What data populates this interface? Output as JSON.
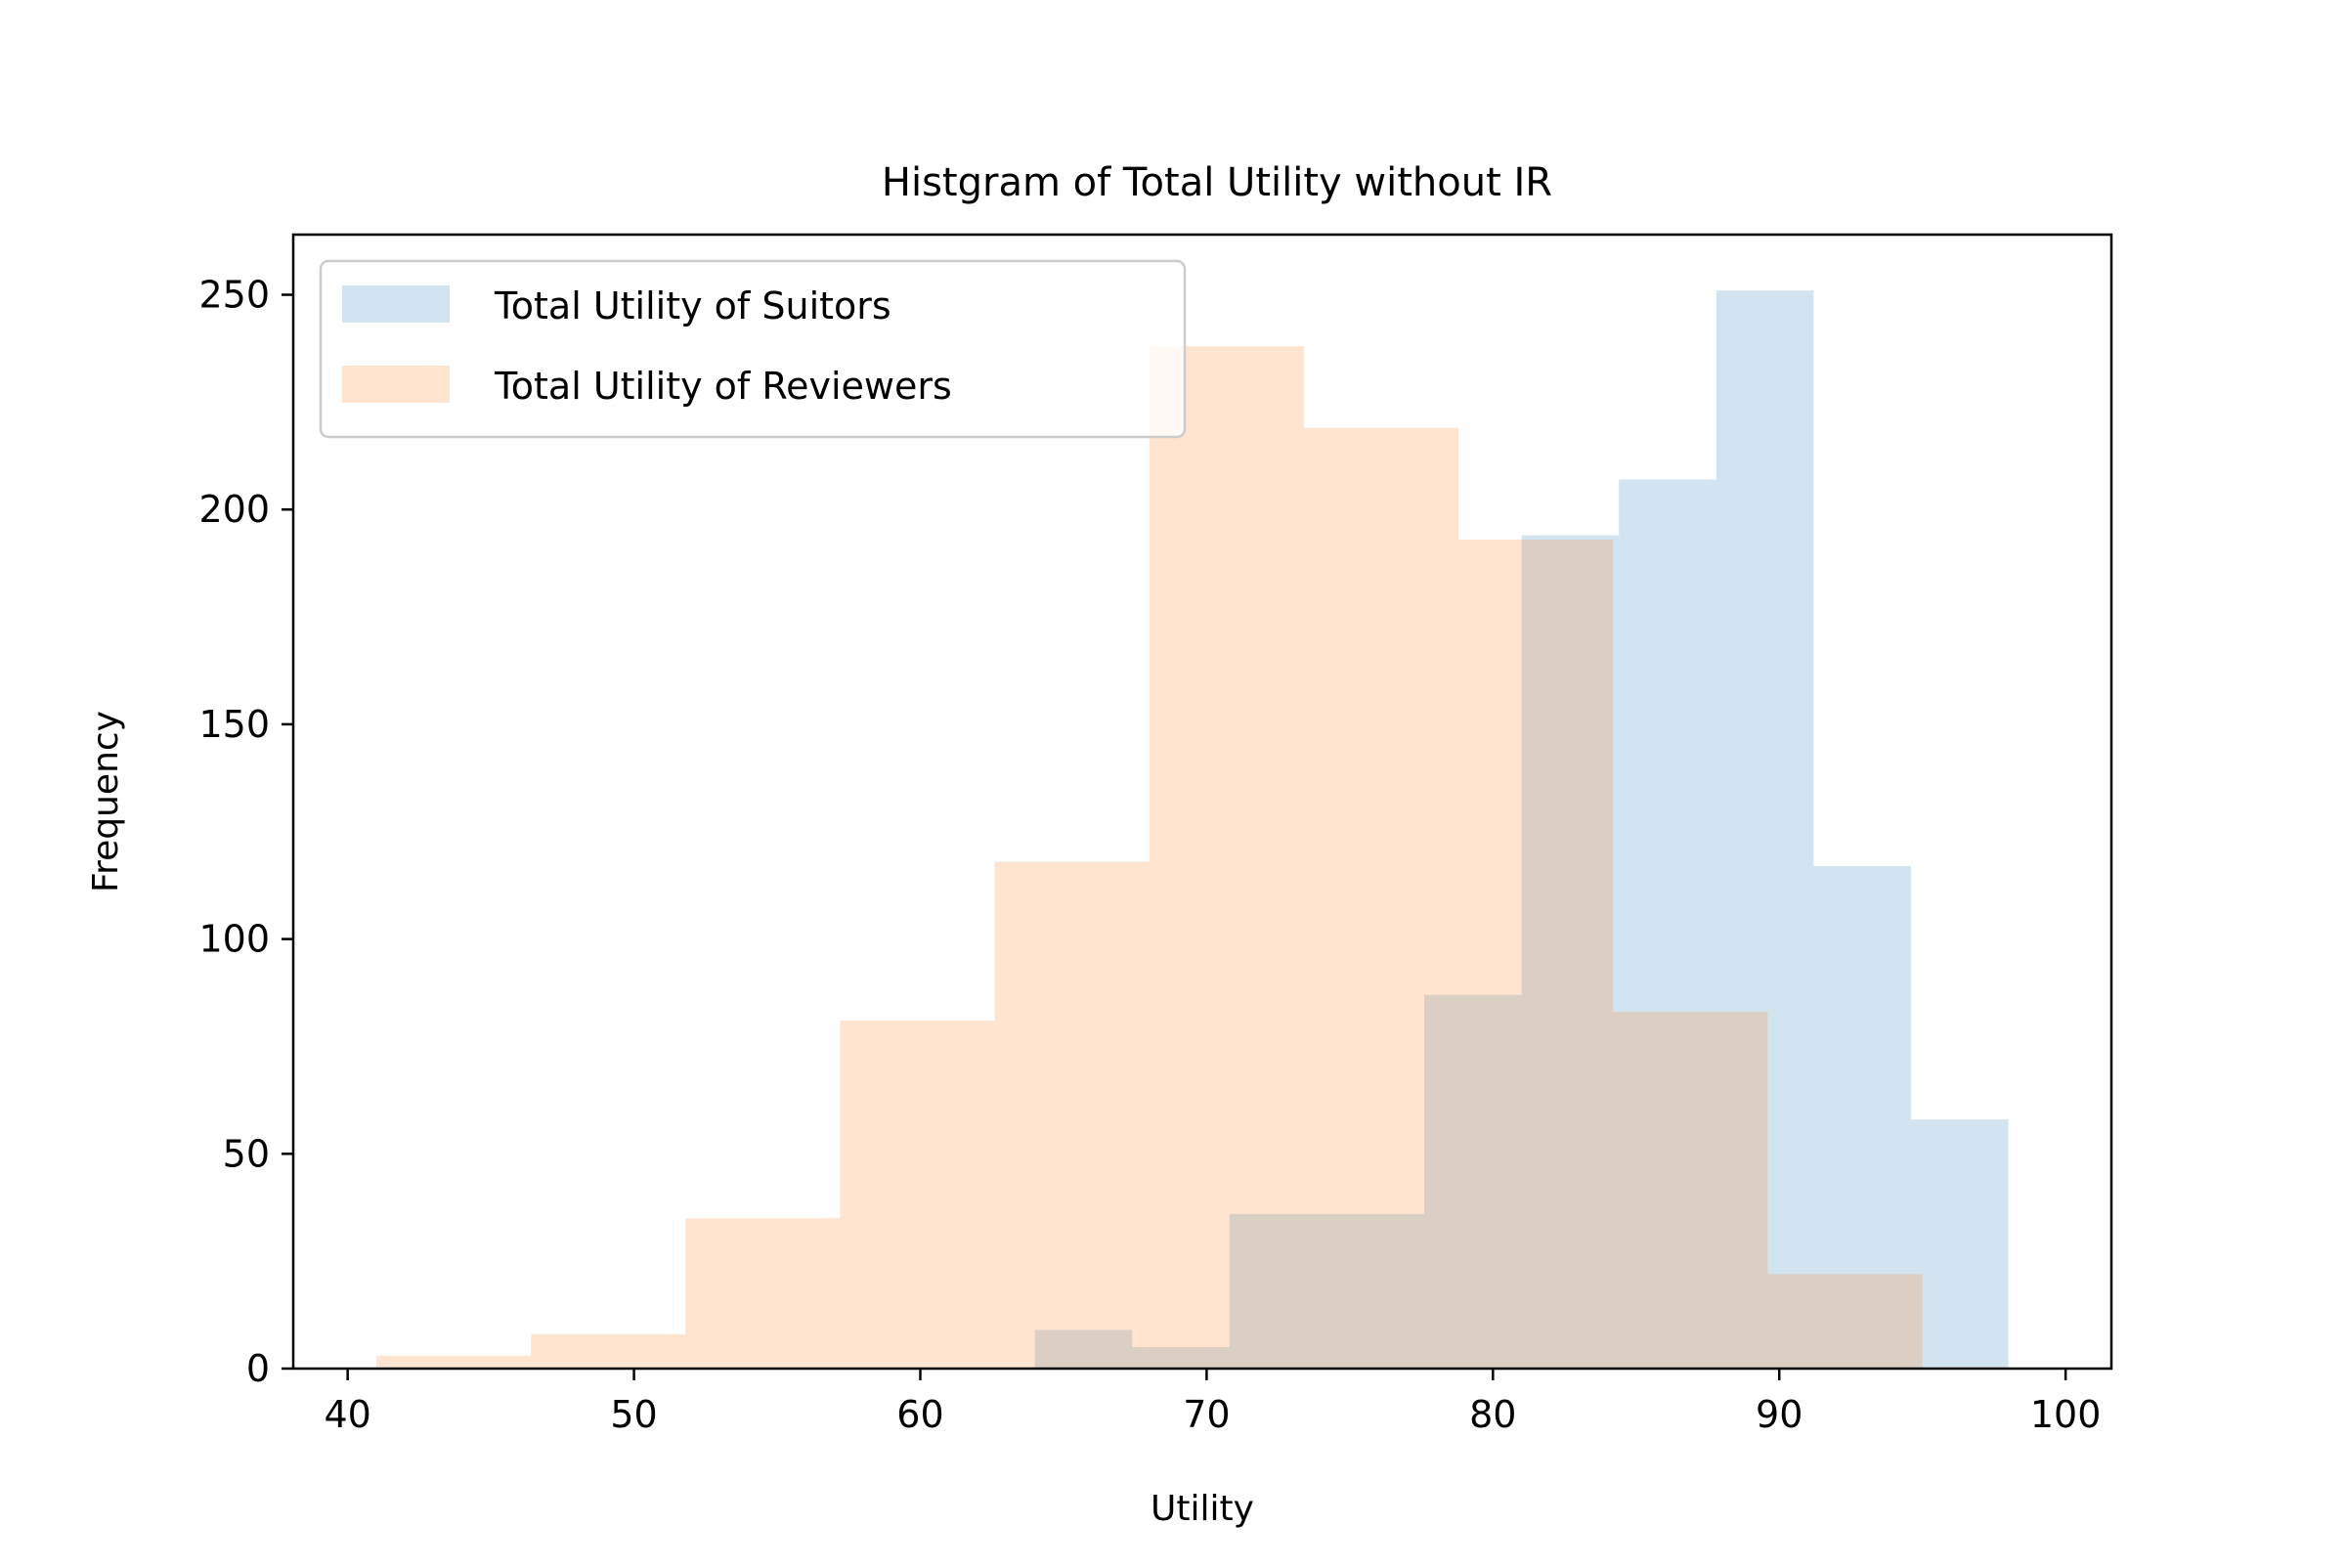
{
  "chart_data": {
    "type": "bar",
    "title": "Histgram of Total Utility without IR",
    "xlabel": "Utility",
    "ylabel": "Frequency",
    "xlim": [
      38.1,
      101.6
    ],
    "ylim": [
      0,
      264
    ],
    "xticks": [
      40,
      50,
      60,
      70,
      80,
      90,
      100
    ],
    "yticks": [
      0,
      50,
      100,
      150,
      200,
      250
    ],
    "grid": false,
    "legend_position": "top-left",
    "series": [
      {
        "name": "Total Utility of Suitors",
        "color": "#1f77b4",
        "alpha": 0.2,
        "bin_edges": [
          64.0,
          67.4,
          70.8,
          74.2,
          77.6,
          81.0,
          84.4,
          87.8,
          91.2,
          94.6,
          98.0
        ],
        "counts": [
          9,
          5,
          36,
          36,
          87,
          194,
          207,
          251,
          117,
          58
        ]
      },
      {
        "name": "Total Utility of Reviewers",
        "color": "#ff7f0e",
        "alpha": 0.2,
        "bin_edges": [
          41.0,
          46.4,
          51.8,
          57.2,
          62.6,
          68.0,
          73.4,
          78.8,
          84.2,
          89.6,
          95.0
        ],
        "counts": [
          3,
          8,
          35,
          81,
          118,
          238,
          219,
          193,
          83,
          22
        ]
      }
    ]
  }
}
